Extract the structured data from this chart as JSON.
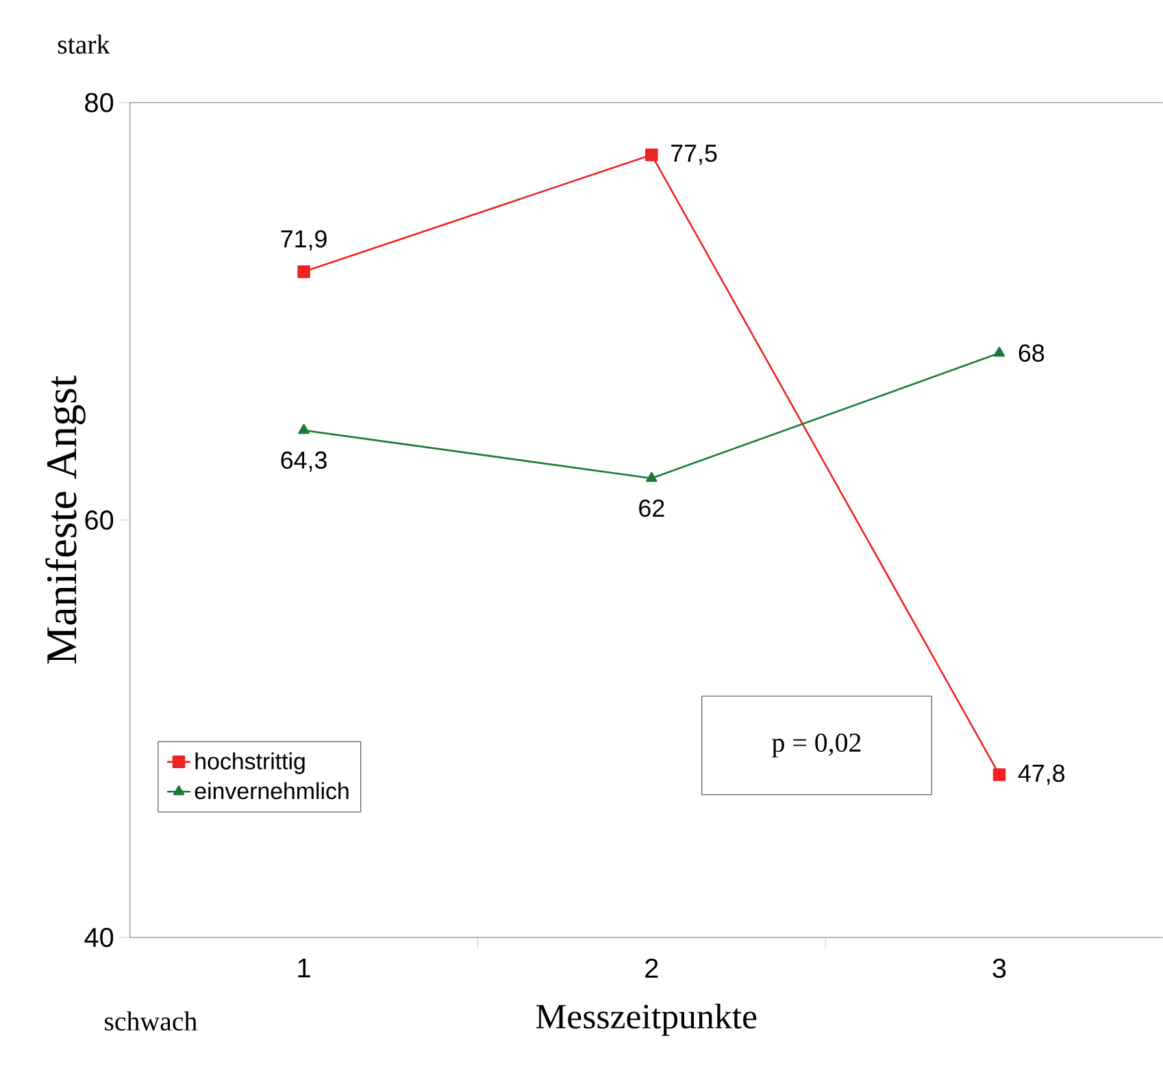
{
  "chart_data": {
    "type": "line",
    "xlabel": "Messzeitpunkte",
    "ylabel": "Manifeste Angst",
    "categories": [
      "1",
      "2",
      "3"
    ],
    "series": [
      {
        "name": "hochstrittig",
        "color": "#ee2222",
        "marker": "square",
        "values": [
          71.9,
          77.5,
          47.8
        ],
        "value_labels": [
          "71,9",
          "77,5",
          "47,8"
        ]
      },
      {
        "name": "einvernehmlich",
        "color": "#1a7a3a",
        "marker": "triangle",
        "values": [
          64.3,
          62,
          68
        ],
        "value_labels": [
          "64,3",
          "62",
          "68"
        ]
      }
    ],
    "ylim": [
      40,
      80
    ],
    "yticks": [
      40,
      60,
      80
    ],
    "legend": "bottom left",
    "annotations": [
      "stark",
      "schwach",
      "p = 0,02"
    ]
  }
}
